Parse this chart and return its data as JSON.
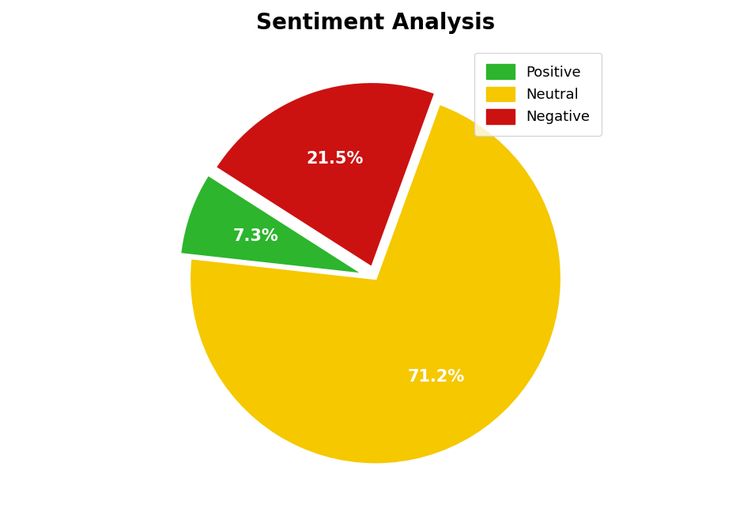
{
  "title": "Sentiment Analysis",
  "title_fontsize": 20,
  "title_fontweight": "bold",
  "labels": [
    "Neutral",
    "Positive",
    "Negative"
  ],
  "values": [
    71.2,
    7.3,
    21.5
  ],
  "colors": [
    "#f5c800",
    "#2db52d",
    "#cc1111"
  ],
  "explode": [
    0.0,
    0.06,
    0.06
  ],
  "autopct_fontsize": 15,
  "autopct_color": "white",
  "autopct_fontweight": "bold",
  "legend_labels": [
    "Positive",
    "Neutral",
    "Negative"
  ],
  "legend_colors": [
    "#2db52d",
    "#f5c800",
    "#cc1111"
  ],
  "legend_fontsize": 13,
  "legend_loc": "upper right",
  "startangle": 70,
  "wedge_edgecolor": "white",
  "wedge_linewidth": 2.5,
  "background_color": "#ffffff",
  "pctdistance": 0.62
}
